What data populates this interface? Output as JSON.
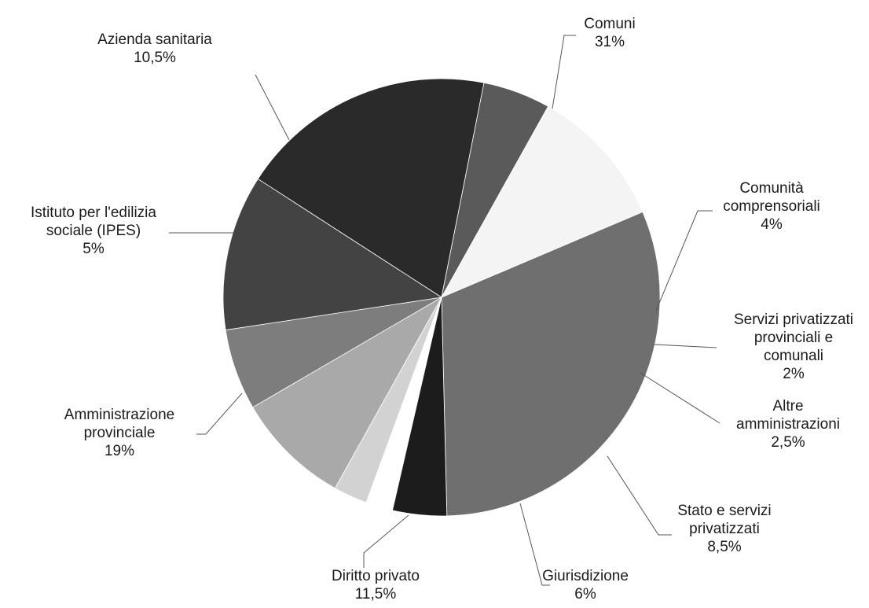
{
  "chart_data": {
    "type": "pie",
    "title": "",
    "start_angle_deg": -23,
    "direction": "clockwise",
    "slices": [
      {
        "name": "Comuni",
        "value": 31,
        "value_label": "31%",
        "color": "#6f6f6f"
      },
      {
        "name": "Comunità comprensoriali",
        "value": 4,
        "value_label": "4%",
        "color": "#1c1c1c"
      },
      {
        "name": "Servizi privatizzati provinciali e comunali",
        "value": 2,
        "value_label": "2%",
        "color": "#ffffff",
        "exploded": true
      },
      {
        "name": "Altre amministrazioni",
        "value": 2.5,
        "value_label": "2,5%",
        "color": "#d2d2d2"
      },
      {
        "name": "Stato e servizi privatizzati",
        "value": 8.5,
        "value_label": "8,5%",
        "color": "#a9a9a9"
      },
      {
        "name": "Giurisdizione",
        "value": 6,
        "value_label": "6%",
        "color": "#7d7d7d"
      },
      {
        "name": "Diritto privato",
        "value": 11.5,
        "value_label": "11,5%",
        "color": "#434343"
      },
      {
        "name": "Amministrazione provinciale",
        "value": 19,
        "value_label": "19%",
        "color": "#2a2a2a"
      },
      {
        "name": "Istituto per l'edilizia sociale (IPES)",
        "value": 5,
        "value_label": "5%",
        "color": "#5a5a5a"
      },
      {
        "name": "Azienda sanitaria",
        "value": 10.5,
        "value_label": "10,5%",
        "color": "#f4f4f4"
      }
    ]
  },
  "labels": [
    {
      "lines": [
        "Comuni",
        "31%"
      ]
    },
    {
      "lines": [
        "Comunità",
        "comprensoriali",
        "4%"
      ]
    },
    {
      "lines": [
        "Servizi privatizzati",
        "provinciali e",
        "comunali",
        "2%"
      ]
    },
    {
      "lines": [
        "Altre",
        "amministrazioni",
        "2,5%"
      ]
    },
    {
      "lines": [
        "Stato e servizi",
        "privatizzati",
        "8,5%"
      ]
    },
    {
      "lines": [
        "Giurisdizione",
        "6%"
      ]
    },
    {
      "lines": [
        "Diritto privato",
        "11,5%"
      ]
    },
    {
      "lines": [
        "Amministrazione",
        "provinciale",
        "19%"
      ]
    },
    {
      "lines": [
        "Istituto per l'edilizia",
        "sociale (IPES)",
        "5%"
      ]
    },
    {
      "lines": [
        "Azienda sanitaria",
        "10,5%"
      ]
    }
  ]
}
